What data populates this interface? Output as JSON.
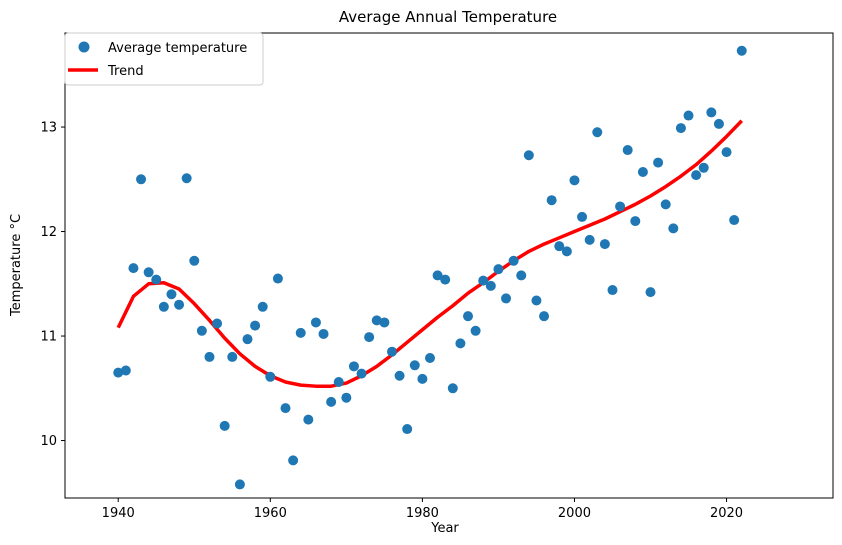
{
  "chart_data": {
    "type": "scatter",
    "title": "Average Annual Temperature",
    "xlabel": "Year",
    "ylabel": "Temperature °C",
    "xlim": [
      1933,
      2034
    ],
    "ylim": [
      9.45,
      13.9
    ],
    "xticks": [
      1940,
      1960,
      1980,
      2000,
      2020
    ],
    "yticks": [
      10,
      11,
      12,
      13
    ],
    "legend_position": "top-left",
    "series": [
      {
        "name": "Average temperature",
        "kind": "scatter",
        "color": "#1f77b4",
        "x": [
          1940,
          1941,
          1942,
          1943,
          1944,
          1945,
          1946,
          1947,
          1948,
          1949,
          1950,
          1951,
          1952,
          1953,
          1954,
          1955,
          1956,
          1957,
          1958,
          1959,
          1960,
          1961,
          1962,
          1963,
          1964,
          1965,
          1966,
          1967,
          1968,
          1969,
          1970,
          1971,
          1972,
          1973,
          1974,
          1975,
          1976,
          1977,
          1978,
          1979,
          1980,
          1981,
          1982,
          1983,
          1984,
          1985,
          1986,
          1987,
          1988,
          1989,
          1990,
          1991,
          1992,
          1993,
          1994,
          1995,
          1996,
          1997,
          1998,
          1999,
          2000,
          2001,
          2002,
          2003,
          2004,
          2005,
          2006,
          2007,
          2008,
          2009,
          2010,
          2011,
          2012,
          2013,
          2014,
          2015,
          2016,
          2017,
          2018,
          2019,
          2020,
          2021,
          2022
        ],
        "y": [
          10.65,
          10.67,
          11.65,
          12.5,
          11.61,
          11.54,
          11.28,
          11.4,
          11.3,
          12.51,
          11.72,
          11.05,
          10.8,
          11.12,
          10.14,
          10.8,
          9.58,
          10.97,
          11.1,
          11.28,
          10.61,
          11.55,
          10.31,
          9.81,
          11.03,
          10.2,
          11.13,
          11.02,
          10.37,
          10.56,
          10.41,
          10.71,
          10.64,
          10.99,
          11.15,
          11.13,
          10.85,
          10.62,
          10.11,
          10.72,
          10.59,
          10.79,
          11.58,
          11.54,
          10.5,
          10.93,
          11.19,
          11.05,
          11.53,
          11.48,
          11.64,
          11.36,
          11.72,
          11.58,
          12.73,
          11.34,
          11.19,
          12.3,
          11.86,
          11.81,
          12.49,
          12.14,
          11.92,
          12.95,
          11.88,
          11.44,
          12.24,
          12.78,
          12.1,
          12.57,
          11.42,
          12.66,
          12.26,
          12.03,
          12.99,
          13.11,
          12.54,
          12.61,
          13.14,
          13.03,
          12.76,
          12.11,
          13.73
        ]
      },
      {
        "name": "Trend",
        "kind": "line",
        "color": "#ff0000",
        "x": [
          1940,
          1942,
          1944,
          1946,
          1948,
          1950,
          1952,
          1954,
          1956,
          1958,
          1960,
          1962,
          1964,
          1966,
          1968,
          1970,
          1972,
          1974,
          1976,
          1978,
          1980,
          1982,
          1984,
          1986,
          1988,
          1990,
          1992,
          1994,
          1996,
          1998,
          2000,
          2002,
          2004,
          2006,
          2008,
          2010,
          2012,
          2014,
          2016,
          2018,
          2020,
          2022
        ],
        "y": [
          11.08,
          11.38,
          11.5,
          11.51,
          11.45,
          11.31,
          11.15,
          10.98,
          10.83,
          10.71,
          10.62,
          10.56,
          10.53,
          10.52,
          10.52,
          10.55,
          10.62,
          10.71,
          10.82,
          10.94,
          11.06,
          11.18,
          11.29,
          11.41,
          11.51,
          11.62,
          11.72,
          11.81,
          11.88,
          11.94,
          12.0,
          12.06,
          12.12,
          12.19,
          12.26,
          12.34,
          12.43,
          12.53,
          12.64,
          12.77,
          12.91,
          13.06
        ]
      }
    ]
  }
}
